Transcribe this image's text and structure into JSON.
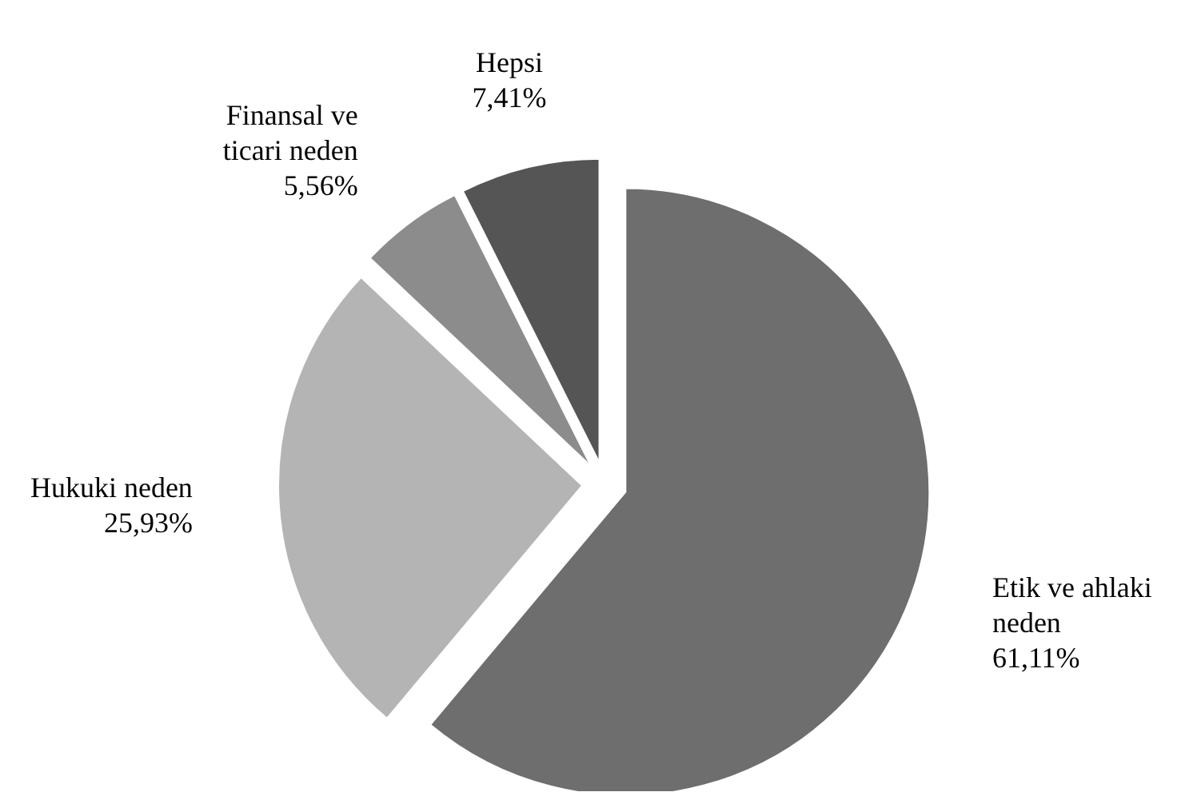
{
  "chart_data": {
    "type": "pie",
    "categories": [
      "Etik ve ahlaki neden",
      "Hukuki neden",
      "Finansal ve ticari neden",
      "Hepsi"
    ],
    "values": [
      61.11,
      25.93,
      5.56,
      7.41
    ],
    "value_labels": [
      "61,11%",
      "25,93%",
      "5,56%",
      "7,41%"
    ],
    "colors": [
      "#6e6e6e",
      "#b4b4b4",
      "#8c8c8c",
      "#555555"
    ]
  }
}
